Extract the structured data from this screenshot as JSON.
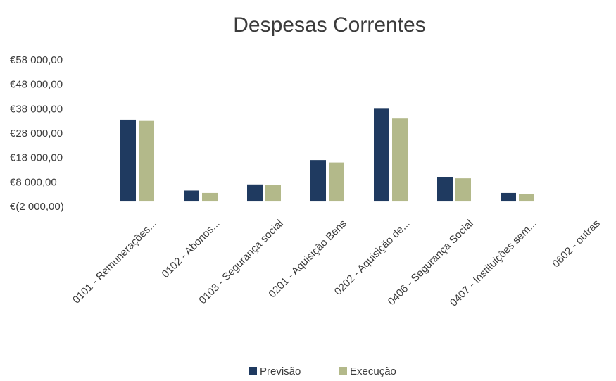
{
  "chart_data": {
    "type": "bar",
    "title": "Despesas Correntes",
    "xlabel": "",
    "ylabel": "",
    "categories": [
      "0101 - Remunerações...",
      "0102 - Abonos...",
      "0103 - Segurança social",
      "0201 - Aquisição Bens",
      "0202 - Aquisição de...",
      "0406 - Segurança Social",
      "0407 - Instituições sem...",
      "0602 - outras"
    ],
    "series": [
      {
        "name": "Previsão",
        "color": "#1f3a60",
        "values": [
          33500,
          4500,
          7000,
          17000,
          38000,
          10000,
          3500,
          0
        ]
      },
      {
        "name": "Execução",
        "color": "#b3b98a",
        "values": [
          33000,
          3500,
          6800,
          16000,
          34000,
          9500,
          3000,
          0
        ]
      }
    ],
    "yticks": [
      "€58 000,00",
      "€48 000,00",
      "€38 000,00",
      "€28 000,00",
      "€18 000,00",
      "€8 000,00",
      "€(2 000,00)"
    ],
    "ylim": [
      -2000,
      58000
    ],
    "grid": false,
    "legend": "bottom"
  }
}
